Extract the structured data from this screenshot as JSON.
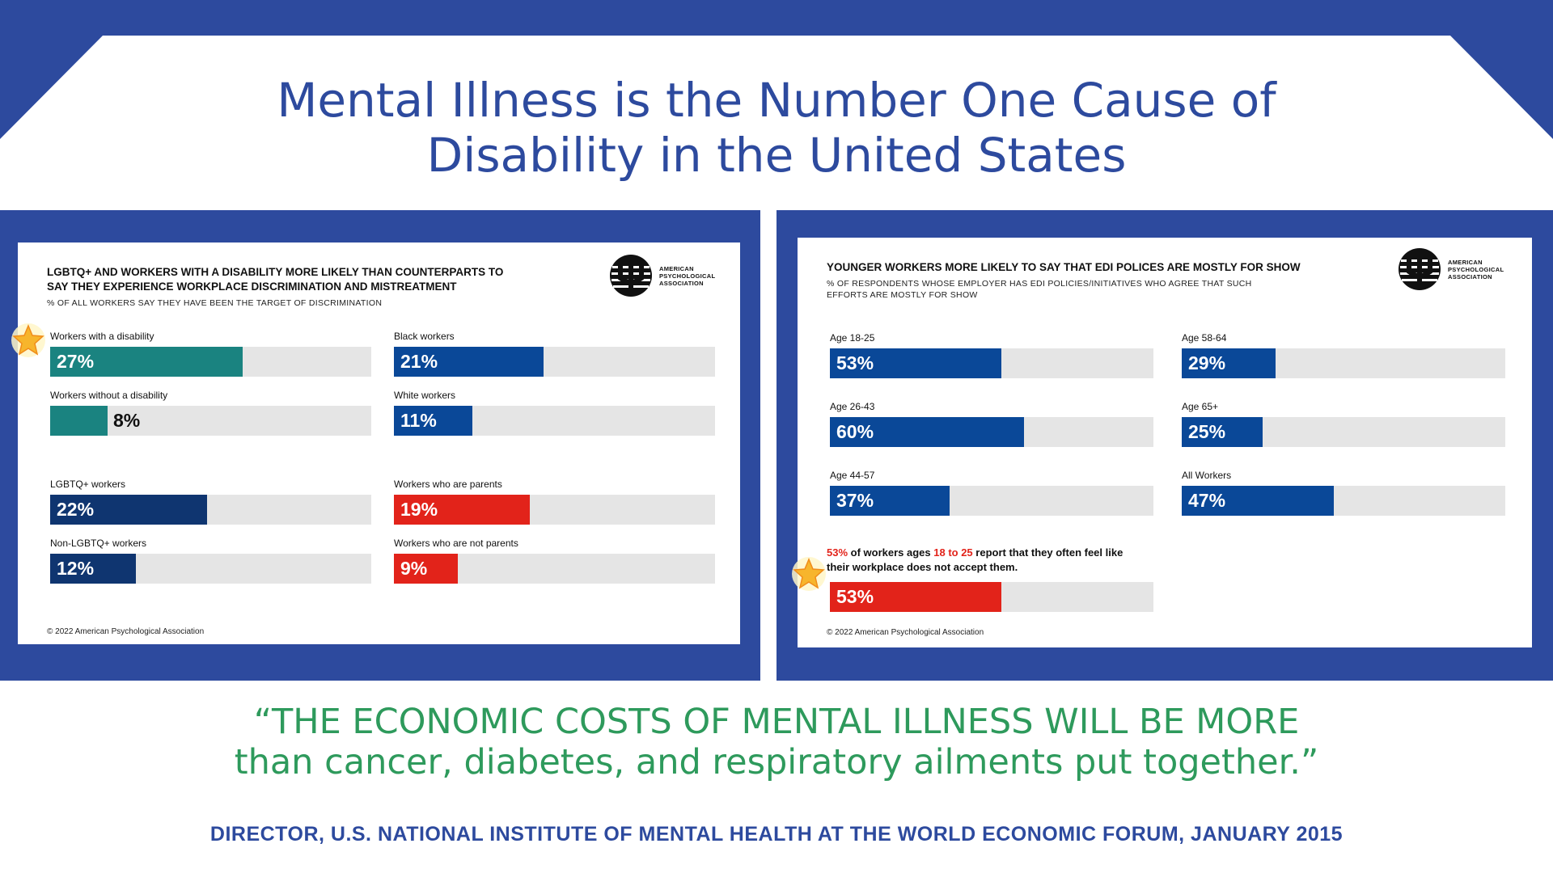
{
  "header": {
    "title_line1": "Mental Illness is the Number One Cause of",
    "title_line2": "Disability in the United States"
  },
  "colors": {
    "brand_blue": "#2d4a9e",
    "teal": "#1a8380",
    "dark_navy": "#0f3570",
    "blue": "#0a4898",
    "red": "#e2231a",
    "quote_green": "#2e9a5c",
    "track_gray": "#e5e5e5"
  },
  "logo": {
    "line1": "AMERICAN",
    "line2": "PSYCHOLOGICAL",
    "line3": "ASSOCIATION"
  },
  "chart_data": [
    {
      "type": "bar",
      "title": "LGBTQ+ AND WORKERS WITH A DISABILITY MORE LIKELY THAN COUNTERPARTS TO SAY THEY EXPERIENCE WORKPLACE DISCRIMINATION AND MISTREATMENT",
      "title_line1": "LGBTQ+ AND WORKERS WITH A DISABILITY MORE LIKELY THAN COUNTERPARTS TO",
      "title_line2": "SAY THEY EXPERIENCE WORKPLACE DISCRIMINATION AND MISTREATMENT",
      "subtitle": "% OF ALL WORKERS SAY THEY HAVE BEEN THE TARGET OF DISCRIMINATION",
      "unit": "%",
      "ylim": [
        0,
        100
      ],
      "bars": [
        {
          "label": "Workers with a disability",
          "value": 27,
          "text": "27%",
          "color": "#1a8380"
        },
        {
          "label": "Workers without a disability",
          "value": 8,
          "text": "8%",
          "color": "#1a8380"
        },
        {
          "label": "LGBTQ+ workers",
          "value": 22,
          "text": "22%",
          "color": "#0f3570"
        },
        {
          "label": "Non-LGBTQ+ workers",
          "value": 12,
          "text": "12%",
          "color": "#0f3570"
        },
        {
          "label": "Black workers",
          "value": 21,
          "text": "21%",
          "color": "#0a4898"
        },
        {
          "label": "White workers",
          "value": 11,
          "text": "11%",
          "color": "#0a4898"
        },
        {
          "label": "Workers who are parents",
          "value": 19,
          "text": "19%",
          "color": "#e2231a"
        },
        {
          "label": "Workers who are not parents",
          "value": 9,
          "text": "9%",
          "color": "#e2231a"
        }
      ],
      "copyright": "© 2022 American Psychological Association"
    },
    {
      "type": "bar",
      "title": "YOUNGER WORKERS MORE LIKELY TO SAY THAT EDI POLICES ARE MOSTLY FOR SHOW",
      "subtitle_line1": "% OF RESPONDENTS WHOSE EMPLOYER HAS EDI POLICIES/INITIATIVES WHO AGREE THAT SUCH",
      "subtitle_line2": "EFFORTS ARE MOSTLY FOR SHOW",
      "unit": "%",
      "ylim": [
        0,
        100
      ],
      "bars": [
        {
          "label": "Age 18-25",
          "value": 53,
          "text": "53%",
          "color": "#0a4898"
        },
        {
          "label": "Age 26-43",
          "value": 60,
          "text": "60%",
          "color": "#0a4898"
        },
        {
          "label": "Age 44-57",
          "value": 37,
          "text": "37%",
          "color": "#0a4898"
        },
        {
          "label": "Age 58-64",
          "value": 29,
          "text": "29%",
          "color": "#0a4898"
        },
        {
          "label": "Age 65+",
          "value": 25,
          "text": "25%",
          "color": "#0a4898"
        },
        {
          "label": "All Workers",
          "value": 47,
          "text": "47%",
          "color": "#0a4898"
        },
        {
          "label": "",
          "value": 53,
          "text": "53%",
          "color": "#e2231a"
        }
      ],
      "note": {
        "part1": "53%",
        "part2": " of workers ages ",
        "part3": "18 to 25",
        "part4": " report that they often feel like",
        "line2": "their workplace does not accept them."
      },
      "copyright": "© 2022 American Psychological Association"
    }
  ],
  "quote": {
    "line1": "“THE ECONOMIC COSTS OF MENTAL ILLNESS WILL BE MORE",
    "line2": "than cancer, diabetes, and respiratory ailments put together.”"
  },
  "attribution": "DIRECTOR, U.S. NATIONAL INSTITUTE OF MENTAL HEALTH AT THE WORLD ECONOMIC FORUM, JANUARY 2015"
}
